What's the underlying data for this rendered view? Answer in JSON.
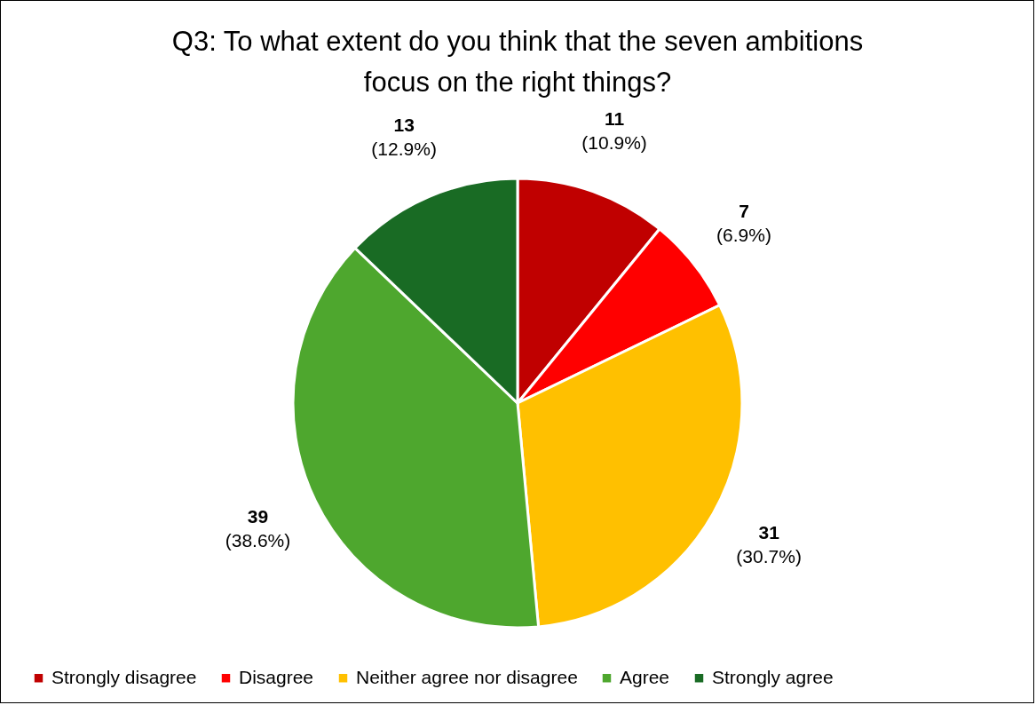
{
  "chart_data": {
    "type": "pie",
    "title": "Q3: To what extent do you think that the seven ambitions focus on the right things?",
    "categories": [
      "Strongly disagree",
      "Disagree",
      "Neither agree nor disagree",
      "Agree",
      "Strongly agree"
    ],
    "values": [
      11,
      7,
      31,
      39,
      13
    ],
    "colors": [
      "#c00000",
      "#ff0000",
      "#ffc000",
      "#4ea72e",
      "#196b24"
    ],
    "value_labels": [
      "11\n(10.9%)",
      "7\n(6.9%)",
      "31\n(30.7%)",
      "39\n(38.6%)",
      "13\n(12.9%)"
    ],
    "legend": "bottom"
  }
}
